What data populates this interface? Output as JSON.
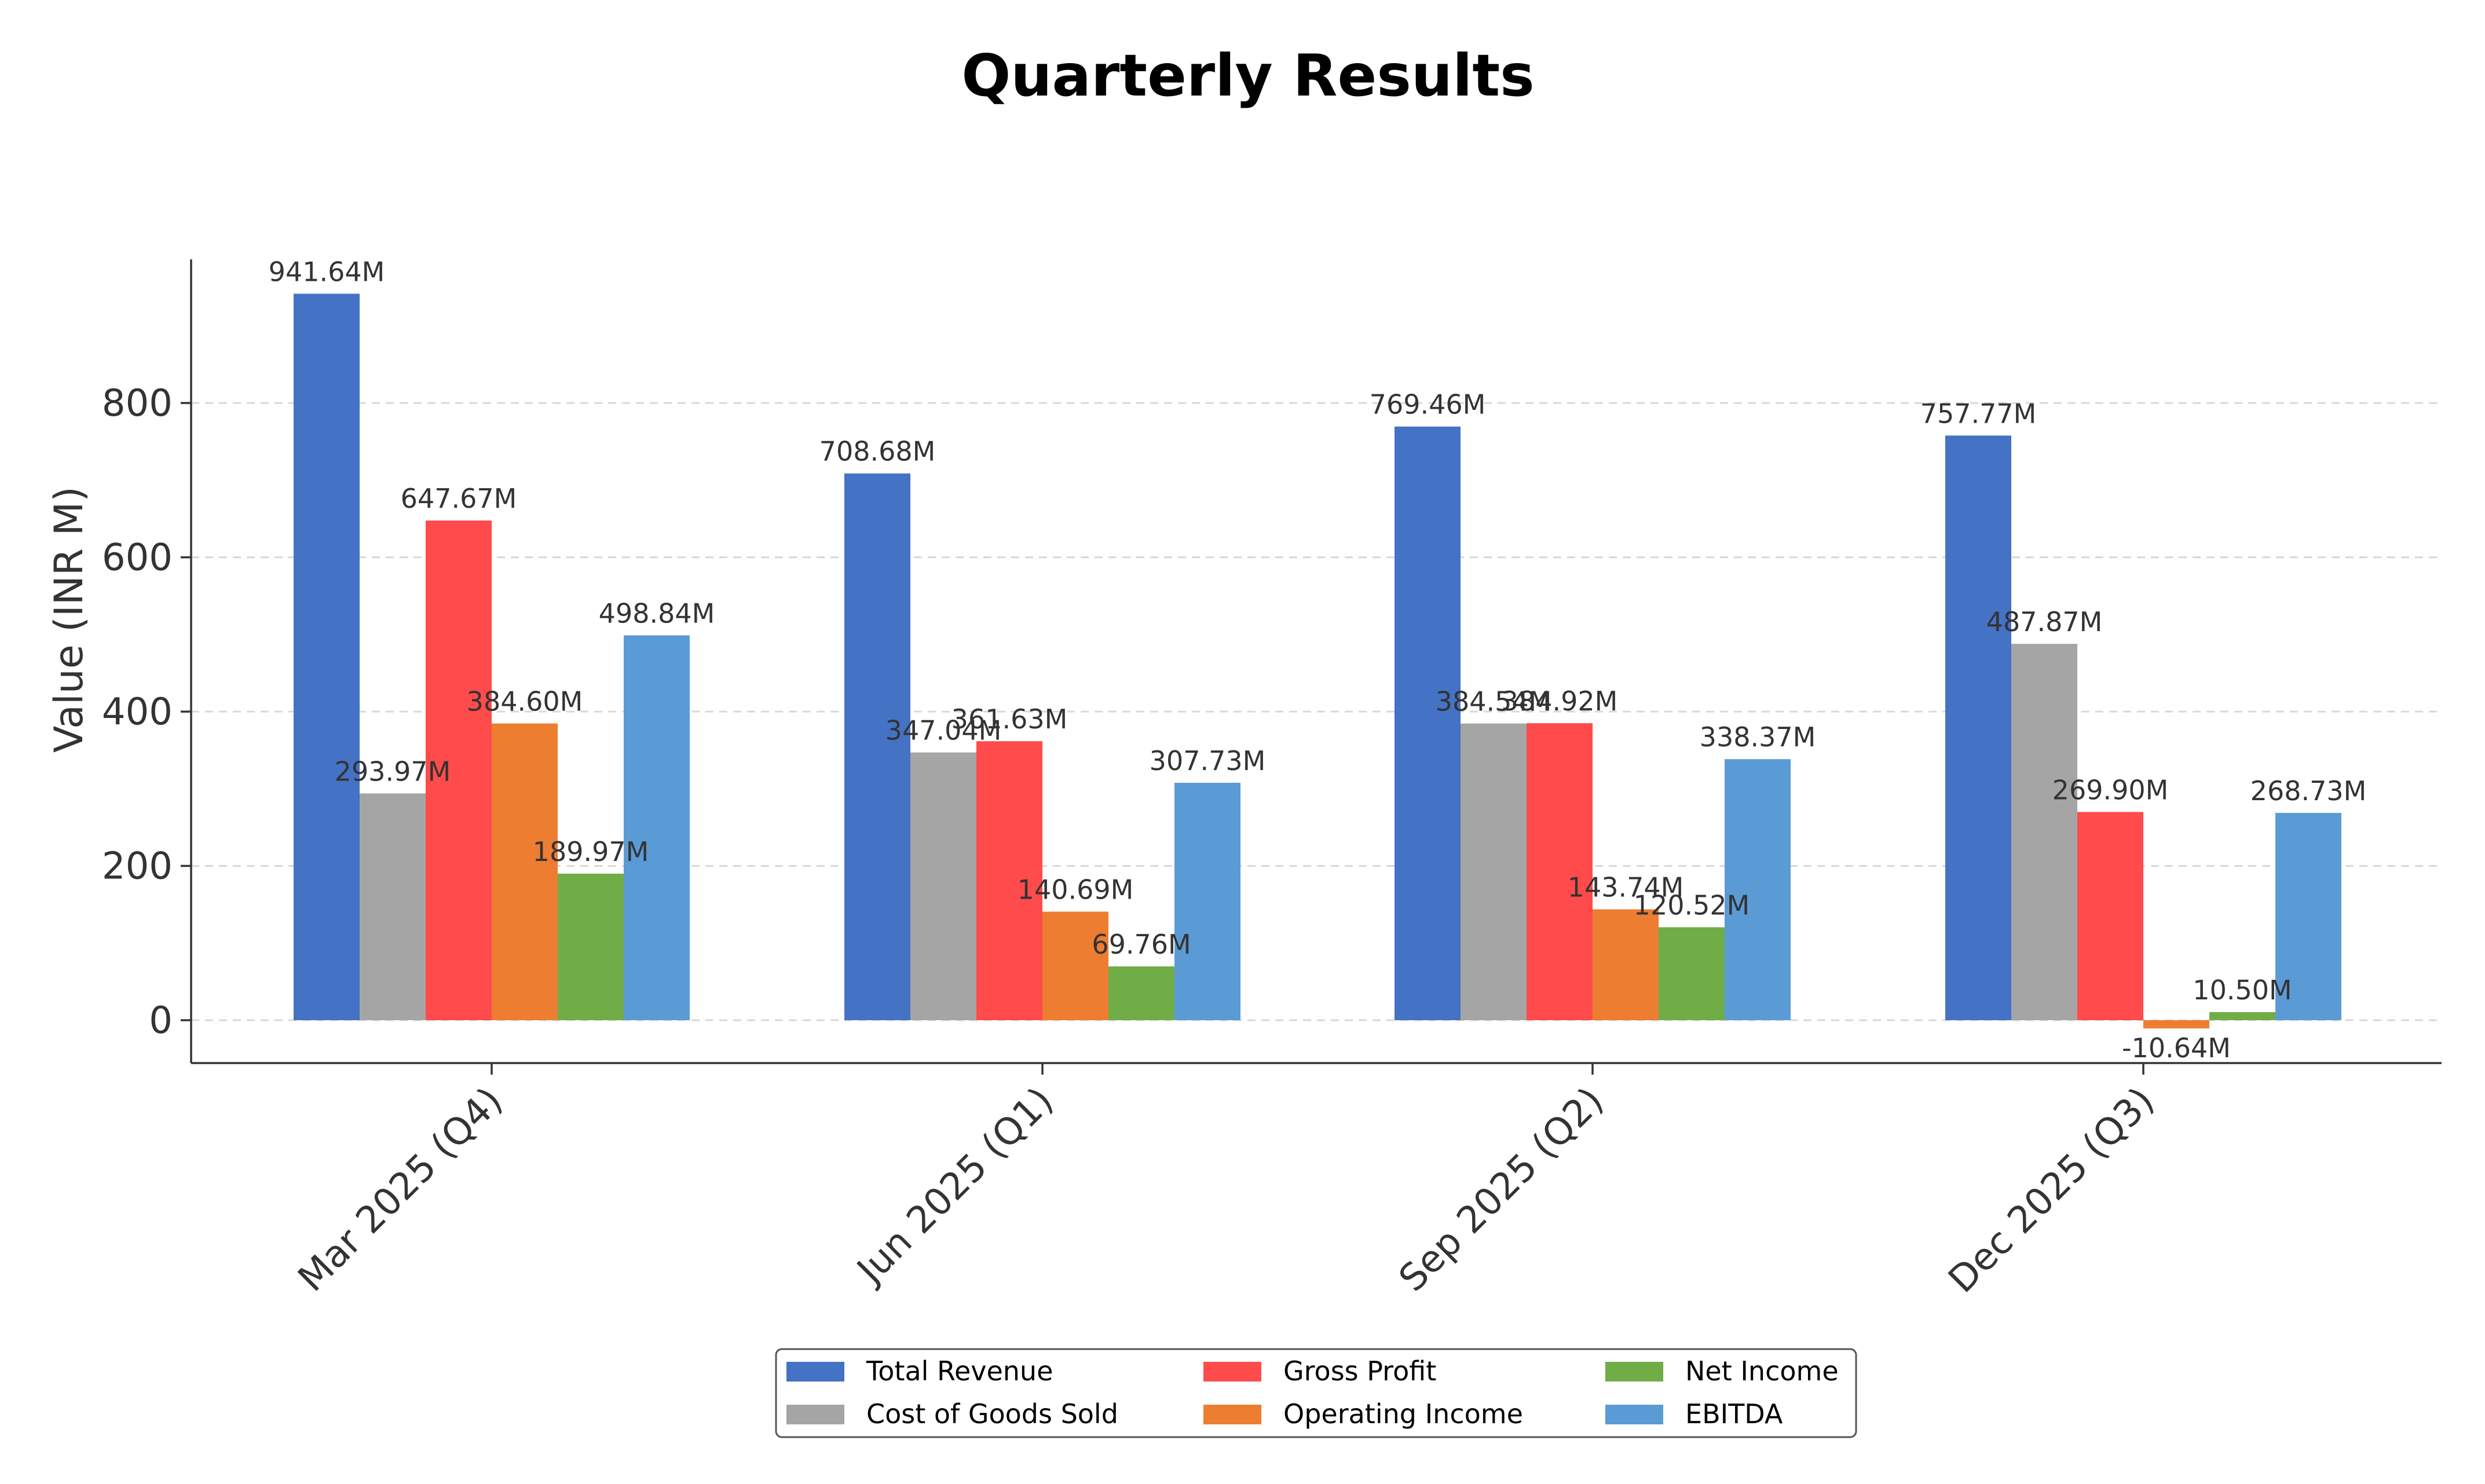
{
  "chart_data": {
    "type": "bar",
    "title": "Quarterly Results",
    "ylabel": "Value (INR M)",
    "xlabel": "",
    "categories": [
      "Mar 2025 (Q4)",
      "Jun 2025 (Q1)",
      "Sep 2025 (Q2)",
      "Dec 2025 (Q3)"
    ],
    "ylim": [
      -57,
      980
    ],
    "yticks": [
      0,
      200,
      400,
      600,
      800
    ],
    "grid": "horizontal-dashed",
    "legend_position": "bottom-center",
    "legend_columns": 3,
    "series": [
      {
        "name": "Total Revenue",
        "color": "#4472C4",
        "values": [
          941.64,
          708.68,
          769.46,
          757.77
        ],
        "labels": [
          "941.64M",
          "708.68M",
          "769.46M",
          "757.77M"
        ]
      },
      {
        "name": "Cost of Goods Sold",
        "color": "#A5A5A5",
        "values": [
          293.97,
          347.04,
          384.54,
          487.87
        ],
        "labels": [
          "293.97M",
          "347.04M",
          "384.54M",
          "487.87M"
        ]
      },
      {
        "name": "Gross Profit",
        "color": "#FF4B4B",
        "values": [
          647.67,
          361.63,
          384.92,
          269.9
        ],
        "labels": [
          "647.67M",
          "361.63M",
          "384.92M",
          "269.90M"
        ]
      },
      {
        "name": "Operating Income",
        "color": "#ED7D31",
        "values": [
          384.6,
          140.69,
          143.74,
          -10.64
        ],
        "labels": [
          "384.60M",
          "140.69M",
          "143.74M",
          "-10.64M"
        ]
      },
      {
        "name": "Net Income",
        "color": "#70AD47",
        "values": [
          189.97,
          69.76,
          120.52,
          10.5
        ],
        "labels": [
          "189.97M",
          "69.76M",
          "120.52M",
          "10.50M"
        ]
      },
      {
        "name": "EBITDA",
        "color": "#5B9BD5",
        "values": [
          498.84,
          307.73,
          338.37,
          268.73
        ],
        "labels": [
          "498.84M",
          "307.73M",
          "338.37M",
          "268.73M"
        ]
      }
    ]
  }
}
